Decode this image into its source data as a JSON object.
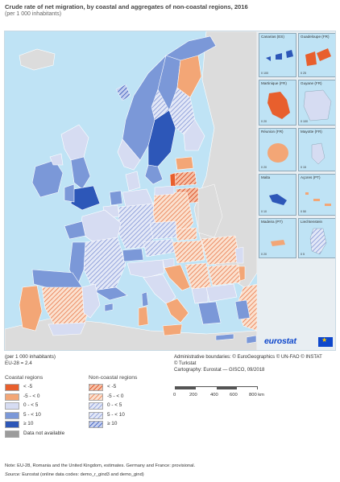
{
  "title": "Crude rate of net migration, by coastal and aggregates of non-coastal regions, 2016",
  "subtitle": "(per 1 000 inhabitants)",
  "unit_label": "(per 1 000 inhabitants)",
  "eu_value": "EU-28 = 2.4",
  "brand": "eurostat",
  "credits": [
    "Administrative boundaries: © EuroGeographics © UN-FAO © INSTAT",
    "© Turkstat",
    "Cartography: Eurostat — GISCO, 09/2018"
  ],
  "scale": {
    "ticks": [
      "0",
      "200",
      "400",
      "600",
      "800 km"
    ]
  },
  "colors": {
    "lt_m5": "#e85f2d",
    "m5_0": "#f3a676",
    "z_5": "#d6dcf2",
    "5_10": "#7b98d8",
    "ge10": "#2d57b8",
    "na": "#9b9b9b",
    "sea": "#bfe3f5",
    "nonEU": "#dcdcdc"
  },
  "legend": {
    "coastal": {
      "title": "Coastal regions",
      "items": [
        {
          "label": "< -5",
          "color": "#e85f2d"
        },
        {
          "label": "-5 - < 0",
          "color": "#f3a676"
        },
        {
          "label": "0 - < 5",
          "color": "#d6dcf2"
        },
        {
          "label": "5 - < 10",
          "color": "#7b98d8"
        },
        {
          "label": "≥ 10",
          "color": "#2d57b8"
        },
        {
          "label": "Data not available",
          "color": "#9b9b9b"
        }
      ]
    },
    "noncoastal": {
      "title": "Non-coastal regions",
      "items": [
        {
          "label": "< -5",
          "color": "#e85f2d"
        },
        {
          "label": "-5 - < 0",
          "color": "#f3a676"
        },
        {
          "label": "0 - < 5",
          "color": "#b5c1e8"
        },
        {
          "label": "5 - < 10",
          "color": "#7b98d8"
        },
        {
          "label": "≥ 10",
          "color": "#2d57b8"
        }
      ]
    }
  },
  "insets": [
    {
      "name": "Canarias (ES)",
      "scale": "0 100"
    },
    {
      "name": "Guadeloupe (FR)",
      "scale": "0 25"
    },
    {
      "name": "Martinique (FR)",
      "scale": "0 20"
    },
    {
      "name": "Guyane (FR)",
      "scale": "0 100"
    },
    {
      "name": "Réunion (FR)",
      "scale": "0 20"
    },
    {
      "name": "Mayotte (FR)",
      "scale": "0 15"
    },
    {
      "name": "Malta",
      "scale": "0 10"
    },
    {
      "name": "Açores (PT)",
      "scale": "0 50"
    },
    {
      "name": "Madeira (PT)",
      "scale": "0 20"
    },
    {
      "name": "Liechtenstein",
      "scale": "0 5"
    }
  ],
  "note": "Note: EU-28, Romania and the United Kingdom, estimates. Germany and France: provisional.",
  "source_label": "Source:",
  "source_text": "Eurostat (online data codes: demo_r_gind3 and demo_gind)"
}
